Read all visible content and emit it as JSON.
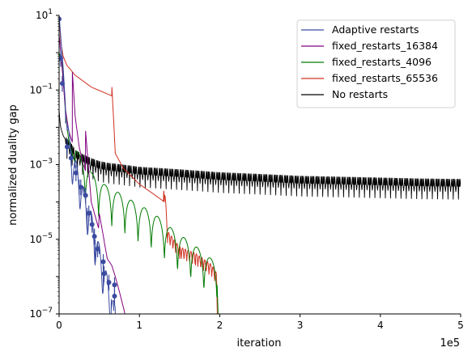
{
  "chart_data": {
    "type": "line",
    "title": "",
    "xlabel": "iteration",
    "ylabel": "normalized duality gap",
    "x_offset_label": "1e5",
    "xlim": [
      0,
      500000
    ],
    "ylim": [
      1e-07,
      10
    ],
    "yscale": "log",
    "grid": false,
    "legend_position": "top-right",
    "x_ticks": [
      0,
      100000,
      200000,
      300000,
      400000,
      500000
    ],
    "x_tick_labels": [
      "0",
      "1",
      "2",
      "3",
      "4",
      "5"
    ],
    "y_ticks": [
      1e-07,
      1e-05,
      0.001,
      0.1,
      10
    ],
    "y_tick_labels": [
      {
        "base": "10",
        "exp": "−7"
      },
      {
        "base": "10",
        "exp": "−5"
      },
      {
        "base": "10",
        "exp": "−3"
      },
      {
        "base": "10",
        "exp": "−1"
      },
      {
        "base": "10",
        "exp": "1"
      }
    ],
    "series": [
      {
        "name": "Adaptive restarts",
        "color": "#3b4ba0",
        "x": [
          0,
          5000,
          10000,
          15000,
          20000,
          25000,
          30000,
          35000,
          40000,
          45000,
          50000,
          55000,
          60000,
          65000,
          68000,
          70000
        ],
        "y": [
          10,
          0.4,
          0.008,
          0.002,
          0.0008,
          0.0004,
          0.00015,
          7e-05,
          3e-05,
          1e-05,
          4e-06,
          1.5e-06,
          6e-07,
          2.5e-07,
          1.2e-07,
          1e-07
        ],
        "markers": [
          [
            0,
            8
          ],
          [
            2000,
            0.7
          ],
          [
            4000,
            0.15
          ],
          [
            10000,
            0.003
          ],
          [
            15000,
            0.0015
          ],
          [
            21000,
            0.0006
          ],
          [
            27000,
            0.00025
          ],
          [
            33000,
            0.00015
          ],
          [
            37000,
            5e-05
          ],
          [
            41000,
            2.5e-05
          ],
          [
            44000,
            1.2e-05
          ],
          [
            48000,
            5.5e-06
          ],
          [
            55000,
            2.5e-06
          ],
          [
            56000,
            1.2e-06
          ],
          [
            62000,
            7e-07
          ],
          [
            69000,
            6e-07
          ],
          [
            69000,
            3e-07
          ]
        ]
      },
      {
        "name": "fixed_restarts_16384",
        "color": "#800080",
        "x": [
          0,
          3000,
          8000,
          12000,
          16384,
          16500,
          20000,
          25000,
          30000,
          32768,
          33000,
          40000,
          49152,
          50000,
          60000,
          65536,
          70000,
          75000,
          80000,
          82000
        ],
        "y": [
          3,
          0.6,
          0.03,
          0.008,
          0.004,
          0.3,
          0.02,
          0.003,
          0.001,
          0.0007,
          0.008,
          0.0001,
          2e-05,
          5e-05,
          3e-06,
          2e-06,
          1e-06,
          4e-07,
          1.5e-07,
          1e-07
        ]
      },
      {
        "name": "fixed_restarts_4096",
        "color": "#007a00",
        "x": [
          0,
          4096,
          8192,
          12288,
          16384,
          20480,
          24576,
          28672,
          32768,
          36864,
          40960,
          49152,
          57344,
          65536,
          81920,
          98304,
          114688,
          131072,
          147456,
          163840,
          180224,
          196608,
          198000
        ],
        "y": [
          1,
          0.5,
          0.02,
          0.004,
          0.002,
          0.001,
          0.0007,
          0.0005,
          0.0004,
          0.0003,
          0.0002,
          0.00015,
          0.0001,
          8e-05,
          5e-05,
          3e-05,
          2e-05,
          1e-05,
          5e-06,
          3e-06,
          1.5e-06,
          8e-07,
          1e-07
        ],
        "wave_period": 16384
      },
      {
        "name": "fixed_restarts_65536",
        "color": "#d03020",
        "x": [
          0,
          2000,
          5000,
          10000,
          20000,
          40000,
          65536,
          65700,
          70000,
          80000,
          100000,
          120000,
          131072,
          131300,
          135000,
          150000,
          170000,
          190000,
          196000,
          197000
        ],
        "y": [
          10,
          2,
          0.8,
          0.45,
          0.25,
          0.12,
          0.07,
          0.12,
          0.002,
          0.0008,
          0.0003,
          0.00015,
          0.0001,
          0.00015,
          8e-06,
          3e-06,
          2e-06,
          1e-06,
          6e-07,
          1e-07
        ]
      },
      {
        "name": "No restarts",
        "color": "#000000",
        "x": [
          0,
          1000,
          2000,
          5000,
          10000,
          15000,
          20000,
          30000,
          40000,
          50000,
          60000,
          80000,
          100000,
          150000,
          200000,
          250000,
          300000,
          350000,
          400000,
          450000,
          500000
        ],
        "y": [
          0.03,
          0.015,
          0.01,
          0.006,
          0.004,
          0.003,
          0.002,
          0.0015,
          0.0012,
          0.001,
          0.0009,
          0.0008,
          0.0007,
          0.0006,
          0.0005,
          0.00045,
          0.0004,
          0.00038,
          0.00036,
          0.00034,
          0.00033
        ],
        "noise_floor_dips": true
      }
    ]
  }
}
